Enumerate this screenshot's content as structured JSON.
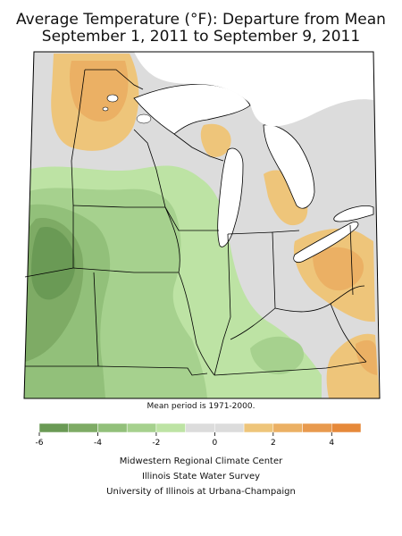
{
  "title": {
    "line1": "Average Temperature (°F): Departure from Mean",
    "line2": "September 1, 2011 to September 9, 2011"
  },
  "map_note": "Mean period is 1971-2000.",
  "legend": {
    "ticks": [
      "-6",
      "-4",
      "-2",
      "0",
      "2",
      "4"
    ],
    "bins": [
      {
        "from": -6,
        "to": -5,
        "color": "#6a9a55"
      },
      {
        "from": -5,
        "to": -4,
        "color": "#7eab65"
      },
      {
        "from": -4,
        "to": -3,
        "color": "#92c07a"
      },
      {
        "from": -3,
        "to": -2,
        "color": "#a6d18e"
      },
      {
        "from": -2,
        "to": -1,
        "color": "#bde3a4"
      },
      {
        "from": -1,
        "to": 0,
        "color": "#dcdcdc"
      },
      {
        "from": 0,
        "to": 1,
        "color": "#dcdcdc"
      },
      {
        "from": 1,
        "to": 2,
        "color": "#eec57a"
      },
      {
        "from": 2,
        "to": 3,
        "color": "#ebb064"
      },
      {
        "from": 3,
        "to": 4,
        "color": "#e89a4e"
      },
      {
        "from": 4,
        "to": 5,
        "color": "#e6893a"
      }
    ]
  },
  "credits": {
    "line1": "Midwestern Regional Climate Center",
    "line2": "Illinois State Water Survey",
    "line3": "University of Illinois at Urbana-Champaign"
  },
  "colors": {
    "water": "#ffffff",
    "border": "#000000",
    "gray": "#dcdcdc"
  }
}
